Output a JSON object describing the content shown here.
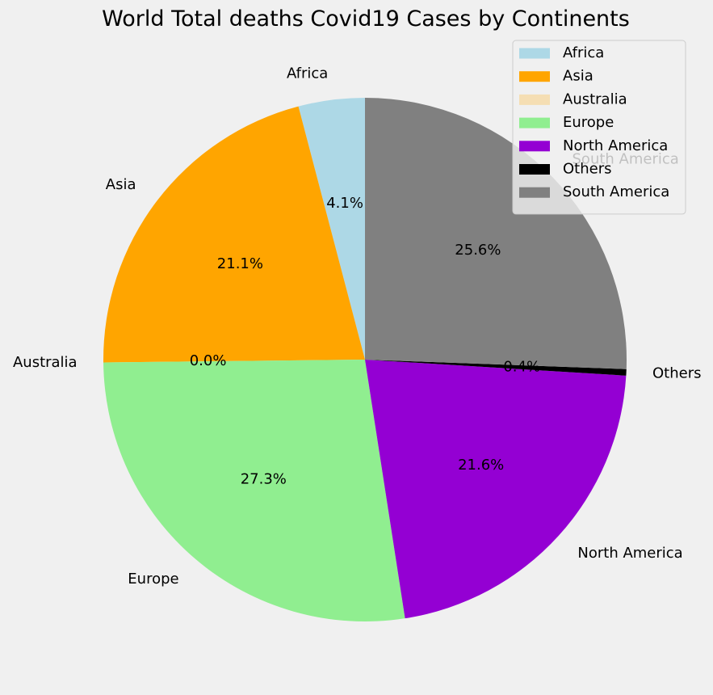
{
  "chart_data": {
    "type": "pie",
    "title": "World Total deaths Covid19 Cases by Continents",
    "start_angle_deg": 90,
    "direction": "counterclockwise",
    "legend_position": "upper-right",
    "slices": [
      {
        "label": "Africa",
        "value": 4.1,
        "pct_label": "4.1%",
        "color": "#add8e6"
      },
      {
        "label": "Asia",
        "value": 21.1,
        "pct_label": "21.1%",
        "color": "#ffa500"
      },
      {
        "label": "Australia",
        "value": 0.0,
        "pct_label": "0.0%",
        "color": "#f5deb3"
      },
      {
        "label": "Europe",
        "value": 27.3,
        "pct_label": "27.3%",
        "color": "#90ee90"
      },
      {
        "label": "North America",
        "value": 21.6,
        "pct_label": "21.6%",
        "color": "#9400d3"
      },
      {
        "label": "Others",
        "value": 0.4,
        "pct_label": "0.4%",
        "color": "#000000"
      },
      {
        "label": "South America",
        "value": 25.6,
        "pct_label": "25.6%",
        "color": "#808080"
      }
    ]
  }
}
